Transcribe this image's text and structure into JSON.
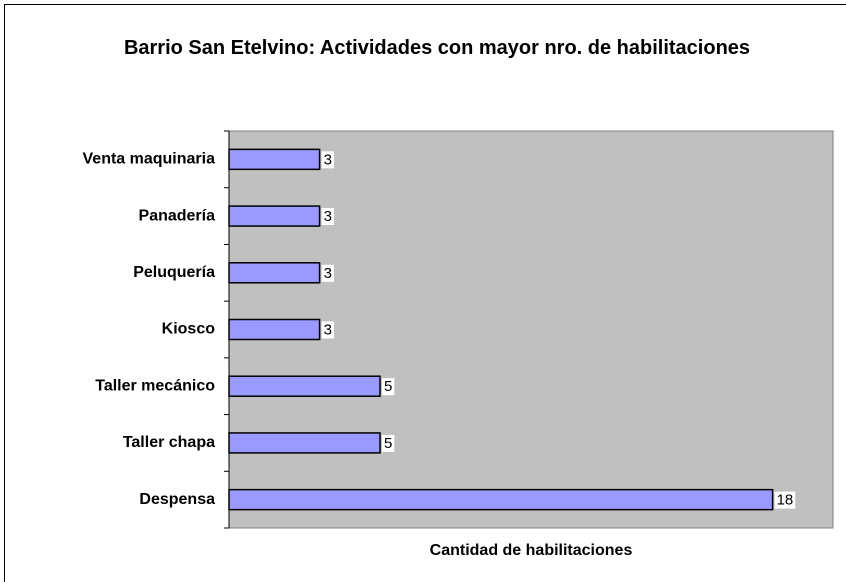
{
  "chart_data": {
    "type": "bar",
    "orientation": "horizontal",
    "title": "Barrio San Etelvino: Actividades con mayor nro. de habilitaciones",
    "x_label": "Cantidad de habilitaciones",
    "categories": [
      "Venta maquinaria",
      "Panadería",
      "Peluquería",
      "Kiosco",
      "Taller mecánico",
      "Taller chapa",
      "Despensa"
    ],
    "values": [
      3,
      3,
      3,
      3,
      5,
      5,
      18
    ],
    "color": "#9999ff",
    "xlim": [
      0,
      20
    ],
    "plot_background": "#c0c0c0"
  }
}
